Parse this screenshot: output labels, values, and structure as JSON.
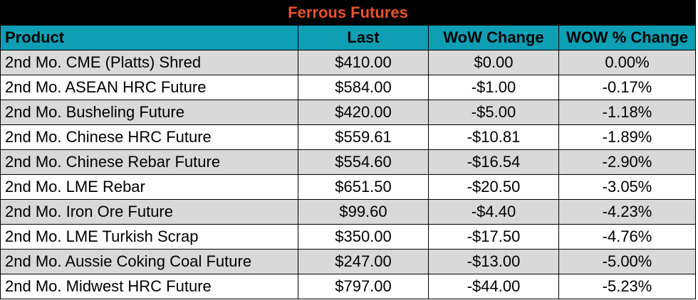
{
  "title": "Ferrous Futures",
  "colors": {
    "title_bg": "#000000",
    "title_text": "#e8522a",
    "header_bg": "#0e9fb5",
    "row_alt_bg": "#d9d9d9",
    "row_bg": "#ffffff"
  },
  "headers": {
    "product": "Product",
    "last": "Last",
    "wow_change": "WoW Change",
    "wow_pct_change": "WOW % Change"
  },
  "rows": [
    {
      "product": "2nd Mo. CME (Platts) Shred",
      "last": "$410.00",
      "wow": "$0.00",
      "pct": "0.00%"
    },
    {
      "product": "2nd Mo. ASEAN HRC Future",
      "last": "$584.00",
      "wow": "-$1.00",
      "pct": "-0.17%"
    },
    {
      "product": "2nd Mo. Busheling Future",
      "last": "$420.00",
      "wow": "-$5.00",
      "pct": "-1.18%"
    },
    {
      "product": "2nd Mo. Chinese HRC Future",
      "last": "$559.61",
      "wow": "-$10.81",
      "pct": "-1.89%"
    },
    {
      "product": "2nd Mo. Chinese Rebar Future",
      "last": "$554.60",
      "wow": "-$16.54",
      "pct": "-2.90%"
    },
    {
      "product": "2nd Mo. LME Rebar",
      "last": "$651.50",
      "wow": "-$20.50",
      "pct": "-3.05%"
    },
    {
      "product": "2nd Mo. Iron Ore Future",
      "last": "$99.60",
      "wow": "-$4.40",
      "pct": "-4.23%"
    },
    {
      "product": "2nd Mo. LME Turkish Scrap",
      "last": "$350.00",
      "wow": "-$17.50",
      "pct": "-4.76%"
    },
    {
      "product": "2nd Mo. Aussie Coking Coal Future",
      "last": "$247.00",
      "wow": "-$13.00",
      "pct": "-5.00%"
    },
    {
      "product": "2nd Mo. Midwest HRC Future",
      "last": "$797.00",
      "wow": "-$44.00",
      "pct": "-5.23%"
    }
  ]
}
